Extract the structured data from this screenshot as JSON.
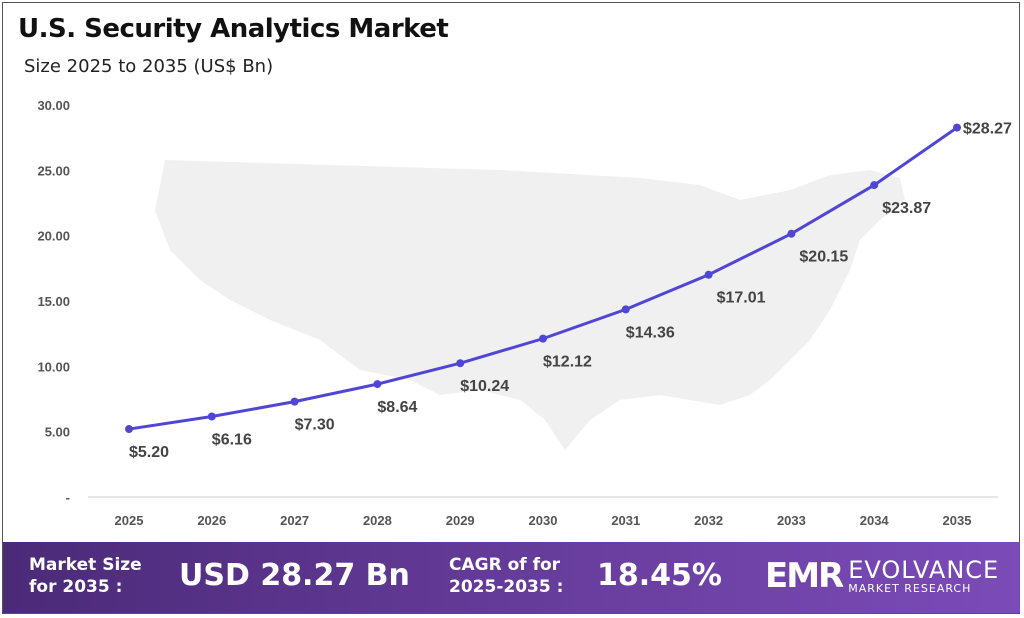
{
  "chart_data": {
    "type": "line",
    "title": "U.S. Security Analytics  Market",
    "subtitle": "Size 2025 to 2035 (US$ Bn)",
    "categories": [
      "2025",
      "2026",
      "2027",
      "2028",
      "2029",
      "2030",
      "2031",
      "2032",
      "2033",
      "2034",
      "2035"
    ],
    "values": [
      5.2,
      6.16,
      7.3,
      8.64,
      10.24,
      12.12,
      14.36,
      17.01,
      20.15,
      23.87,
      28.27
    ],
    "data_labels": [
      "$5.20",
      "$6.16",
      "$7.30",
      "$8.64",
      "$10.24",
      "$12.12",
      "$14.36",
      "$17.01",
      "$20.15",
      "$23.87",
      "$28.27"
    ],
    "yticks": [
      "-",
      "5.00",
      "10.00",
      "15.00",
      "20.00",
      "25.00",
      "30.00"
    ],
    "ylim": [
      0,
      30
    ],
    "grid": false,
    "line_color": "#5046d6",
    "background_image": "us-map-silhouette"
  },
  "footer": {
    "market_size_label_1": "Market Size",
    "market_size_label_2": "for 2035 :",
    "market_size_value": "USD 28.27 Bn",
    "cagr_label_1": "CAGR of for",
    "cagr_label_2": "2025-2035 :",
    "cagr_value": "18.45%",
    "logo_mark": "EMR",
    "logo_name": "EVOLVANCE",
    "logo_tagline": "MARKET RESEARCH"
  }
}
